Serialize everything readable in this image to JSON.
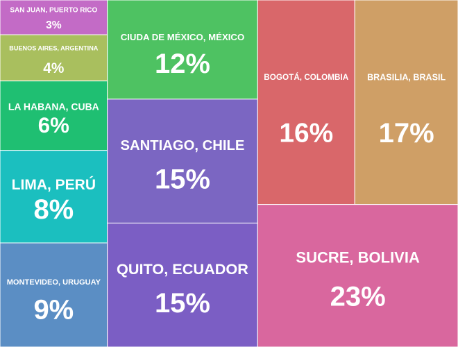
{
  "chart_data": {
    "type": "treemap",
    "categories": [
      "SAN JUAN, PUERTO RICO",
      "BUENOS AIRES, ARGENTINA",
      "LA HABANA, CUBA",
      "LIMA, PERÚ",
      "MONTEVIDEO, URUGUAY",
      "CIUDA DE MÉXICO, MÉXICO",
      "SANTIAGO, CHILE",
      "QUITO, ECUADOR",
      "BOGOTÁ, COLOMBIA",
      "BRASILIA, BRASIL",
      "SUCRE, BOLIVIA"
    ],
    "values": [
      3,
      4,
      6,
      8,
      9,
      12,
      15,
      15,
      16,
      17,
      23
    ],
    "value_labels": [
      "3%",
      "4%",
      "6%",
      "8%",
      "9%",
      "12%",
      "15%",
      "15%",
      "16%",
      "17%",
      "23%"
    ],
    "colors": [
      "#c36bc6",
      "#a9bf5e",
      "#1fbf72",
      "#1bbfbf",
      "#5b8ec4",
      "#4ec262",
      "#7b66c2",
      "#7b5ec4",
      "#d9676a",
      "#cf9f66",
      "#d9679e"
    ]
  }
}
